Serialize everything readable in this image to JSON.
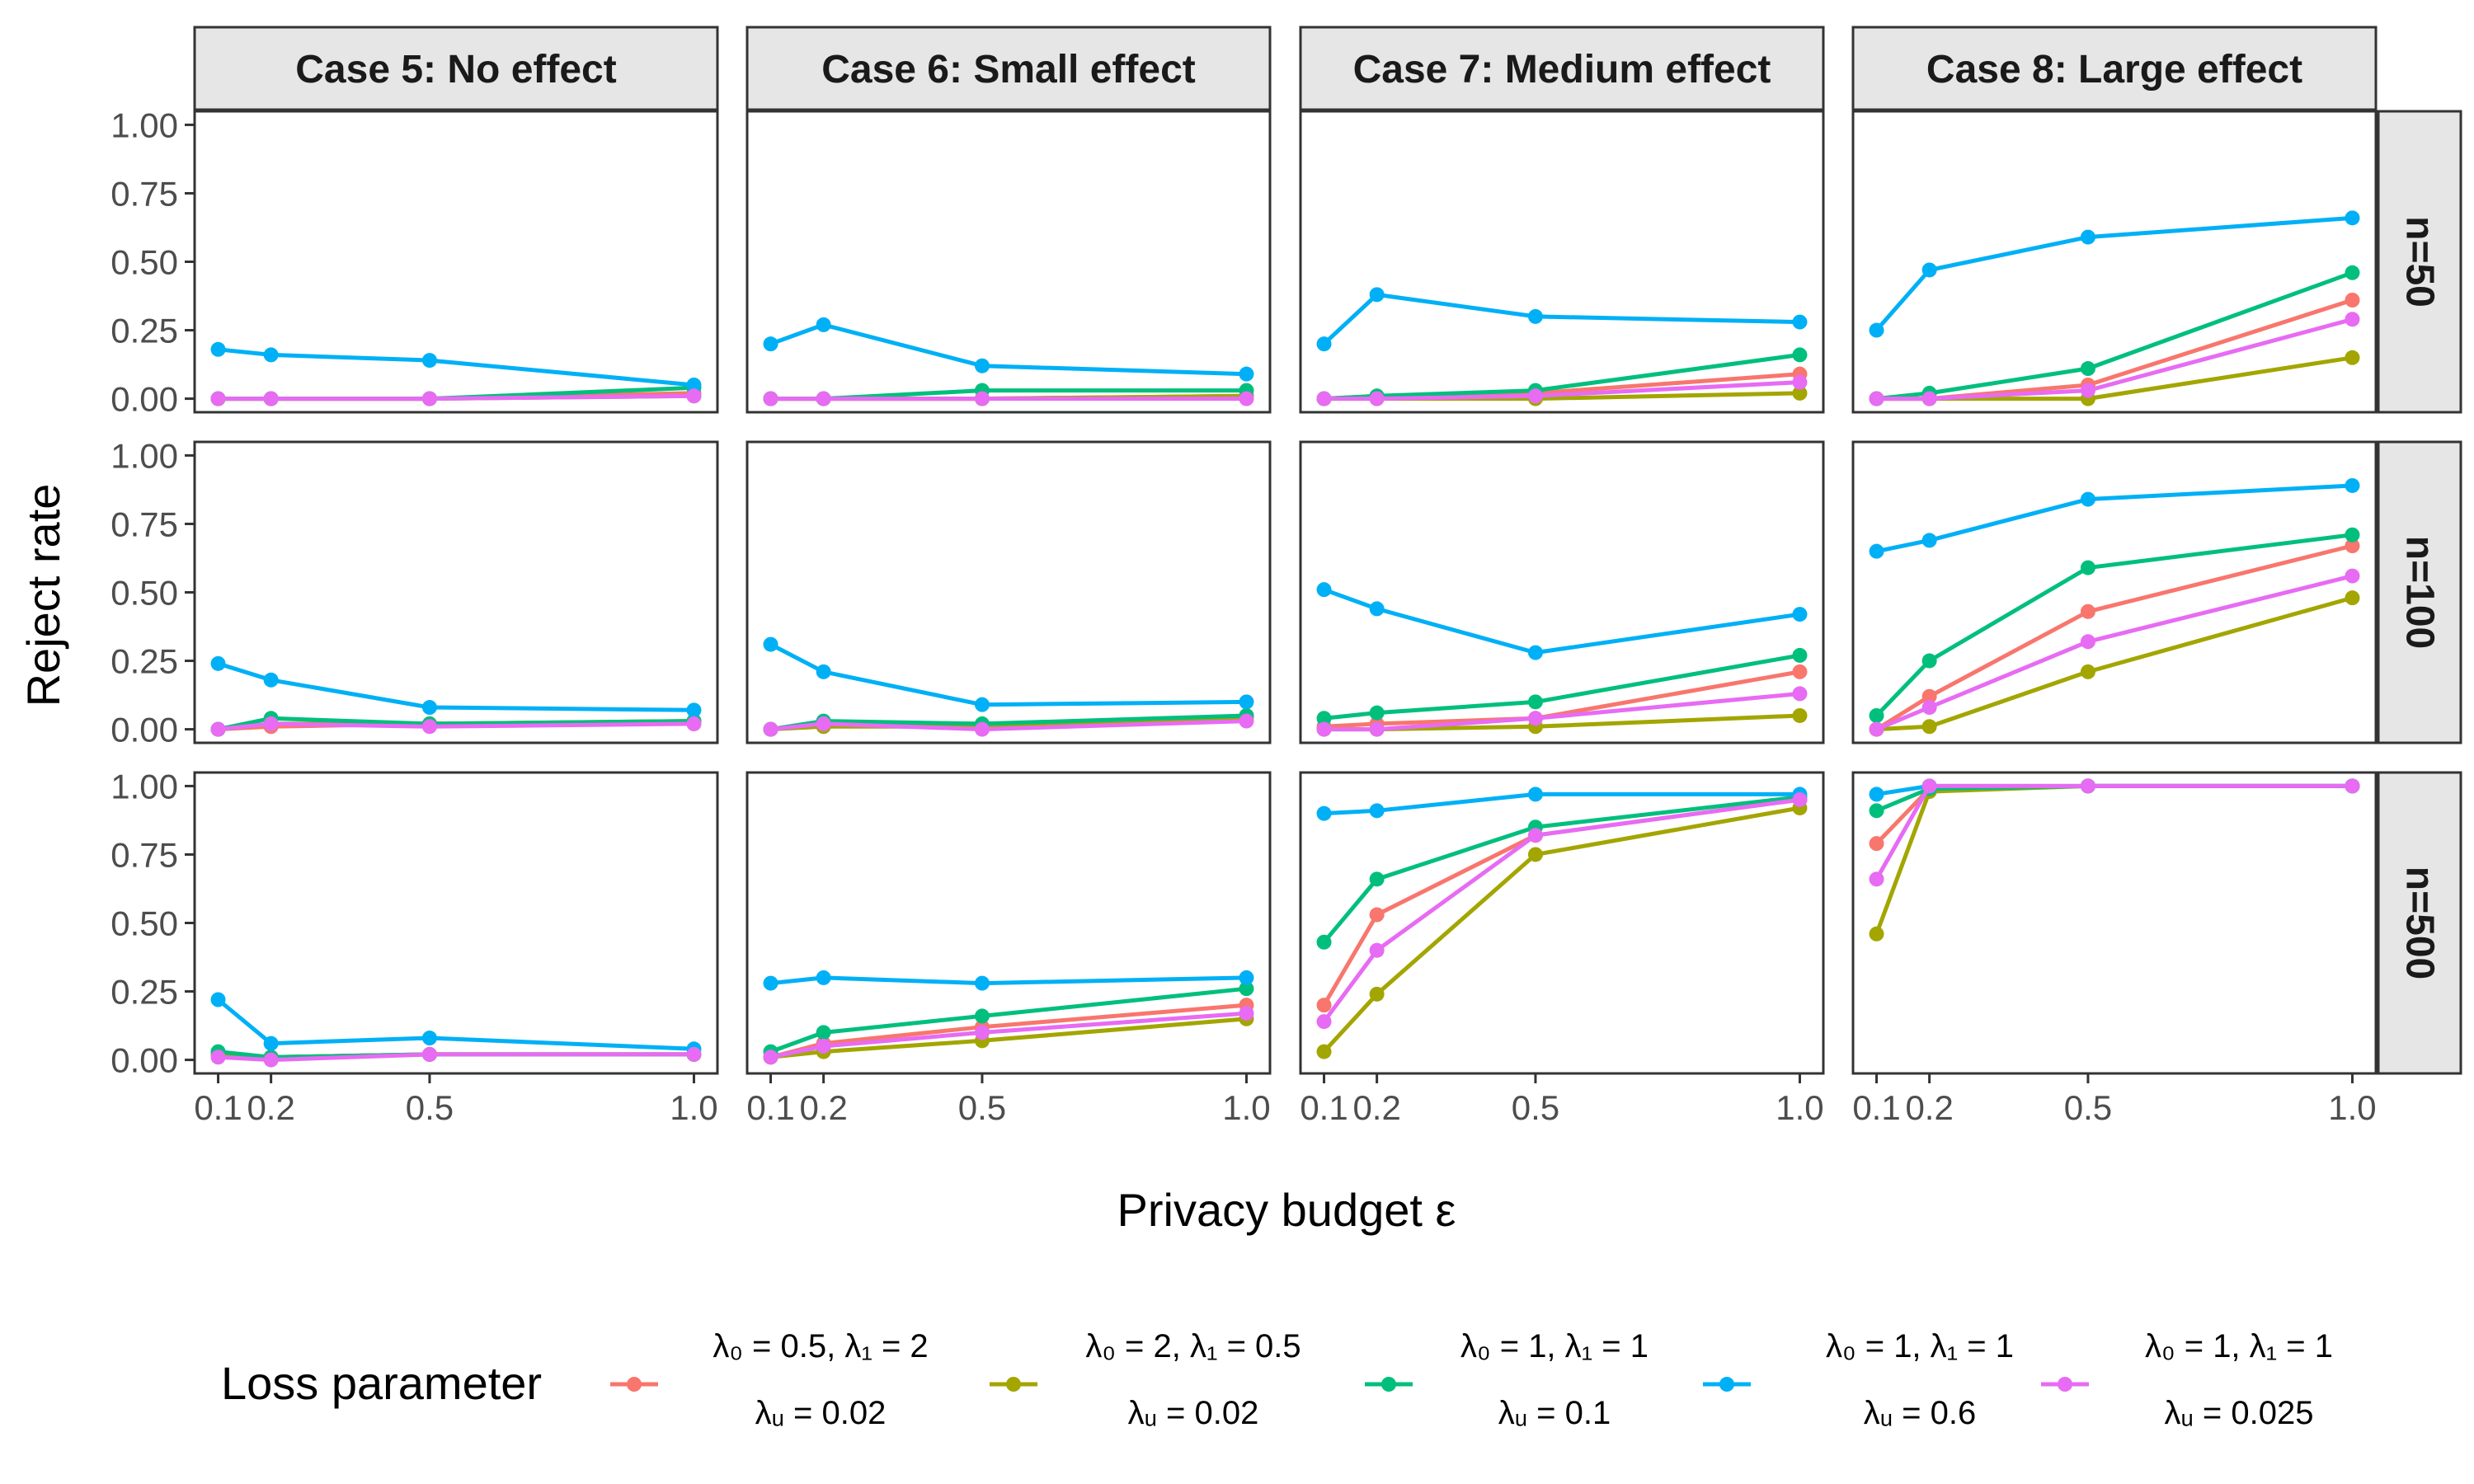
{
  "chart_data": {
    "type": "line",
    "facet_cols": [
      "Case 5: No effect",
      "Case 6: Small effect",
      "Case 7: Medium effect",
      "Case 8: Large effect"
    ],
    "facet_rows": [
      "n=50",
      "n=100",
      "n=500"
    ],
    "x": [
      0.1,
      0.2,
      0.5,
      1.0
    ],
    "x_tick_labels": [
      "0.1",
      "0.2",
      "0.5",
      "1.0"
    ],
    "y_tick_labels": [
      "0.00",
      "0.25",
      "0.50",
      "0.75",
      "1.00"
    ],
    "y_ticks": [
      0,
      0.25,
      0.5,
      0.75,
      1.0
    ],
    "ylim": [
      0,
      1
    ],
    "xlim": [
      0.1,
      1.0
    ],
    "xlabel": "Privacy budget ε",
    "ylabel": "Reject rate",
    "legend": {
      "title": "Loss parameter",
      "position": "bottom",
      "entries": [
        {
          "line1": "λ₀ = 0.5, λ₁ = 2",
          "line2": "λᵤ = 0.02"
        },
        {
          "line1": "λ₀ = 2, λ₁ = 0.5",
          "line2": "λᵤ = 0.02"
        },
        {
          "line1": "λ₀ = 1, λ₁ = 1",
          "line2": "λᵤ = 0.1"
        },
        {
          "line1": "λ₀ = 1, λ₁ = 1",
          "line2": "λᵤ = 0.6"
        },
        {
          "line1": "λ₀ = 1, λ₁ = 1",
          "line2": "λᵤ = 0.025"
        }
      ]
    },
    "series_colors": [
      "#F8766D",
      "#A3A500",
      "#00BF7D",
      "#00B0F6",
      "#E76BF3"
    ],
    "panels": [
      [
        [
          [
            0,
            0,
            0,
            0.02
          ],
          [
            0,
            0,
            0,
            0.01
          ],
          [
            0,
            0,
            0,
            0.04
          ],
          [
            0.18,
            0.16,
            0.14,
            0.05
          ],
          [
            0,
            0,
            0,
            0.01
          ]
        ],
        [
          [
            0,
            0.01,
            0.02,
            0.02
          ],
          [
            0,
            0.02,
            0.02,
            0.03
          ],
          [
            0,
            0.04,
            0.02,
            0.03
          ],
          [
            0.24,
            0.18,
            0.08,
            0.07
          ],
          [
            0,
            0.02,
            0.01,
            0.02
          ]
        ],
        [
          [
            0.02,
            0.01,
            0.02,
            0.02
          ],
          [
            0.02,
            0.01,
            0.02,
            0.02
          ],
          [
            0.03,
            0.01,
            0.02,
            0.02
          ],
          [
            0.22,
            0.06,
            0.08,
            0.04
          ],
          [
            0.01,
            0,
            0.02,
            0.02
          ]
        ]
      ],
      [
        [
          [
            0,
            0,
            0,
            0.01
          ],
          [
            0,
            0,
            0,
            0.01
          ],
          [
            0,
            0,
            0.03,
            0.03
          ],
          [
            0.2,
            0.27,
            0.12,
            0.09
          ],
          [
            0,
            0,
            0,
            0
          ]
        ],
        [
          [
            0,
            0.02,
            0.01,
            0.05
          ],
          [
            0,
            0.01,
            0.01,
            0.04
          ],
          [
            0,
            0.03,
            0.02,
            0.05
          ],
          [
            0.31,
            0.21,
            0.09,
            0.1
          ],
          [
            0,
            0.02,
            0,
            0.03
          ]
        ],
        [
          [
            0.01,
            0.06,
            0.12,
            0.2
          ],
          [
            0.01,
            0.03,
            0.07,
            0.15
          ],
          [
            0.03,
            0.1,
            0.16,
            0.26
          ],
          [
            0.28,
            0.3,
            0.28,
            0.3
          ],
          [
            0.01,
            0.05,
            0.1,
            0.17
          ]
        ]
      ],
      [
        [
          [
            0,
            0.01,
            0.02,
            0.09
          ],
          [
            0,
            0,
            0,
            0.02
          ],
          [
            0,
            0.01,
            0.03,
            0.16
          ],
          [
            0.2,
            0.38,
            0.3,
            0.28
          ],
          [
            0,
            0,
            0.01,
            0.06
          ]
        ],
        [
          [
            0.01,
            0.02,
            0.04,
            0.21
          ],
          [
            0,
            0,
            0.01,
            0.05
          ],
          [
            0.04,
            0.06,
            0.1,
            0.27
          ],
          [
            0.51,
            0.44,
            0.28,
            0.42
          ],
          [
            0,
            0,
            0.04,
            0.13
          ]
        ],
        [
          [
            0.2,
            0.53,
            0.82,
            0.95
          ],
          [
            0.03,
            0.24,
            0.75,
            0.92
          ],
          [
            0.43,
            0.66,
            0.85,
            0.96
          ],
          [
            0.9,
            0.91,
            0.97,
            0.97
          ],
          [
            0.14,
            0.4,
            0.82,
            0.95
          ]
        ]
      ],
      [
        [
          [
            0,
            0,
            0.05,
            0.36
          ],
          [
            0,
            0,
            0,
            0.15
          ],
          [
            0,
            0.02,
            0.11,
            0.46
          ],
          [
            0.25,
            0.47,
            0.59,
            0.66
          ],
          [
            0,
            0,
            0.03,
            0.29
          ]
        ],
        [
          [
            0,
            0.12,
            0.43,
            0.67
          ],
          [
            0,
            0.01,
            0.21,
            0.48
          ],
          [
            0.05,
            0.25,
            0.59,
            0.71
          ],
          [
            0.65,
            0.69,
            0.84,
            0.89
          ],
          [
            0,
            0.08,
            0.32,
            0.56
          ]
        ],
        [
          [
            0.79,
            0.99,
            1,
            1
          ],
          [
            0.46,
            0.98,
            1,
            1
          ],
          [
            0.91,
            0.99,
            1,
            1
          ],
          [
            0.97,
            1,
            1,
            1
          ],
          [
            0.66,
            1,
            1,
            1
          ]
        ]
      ]
    ]
  }
}
